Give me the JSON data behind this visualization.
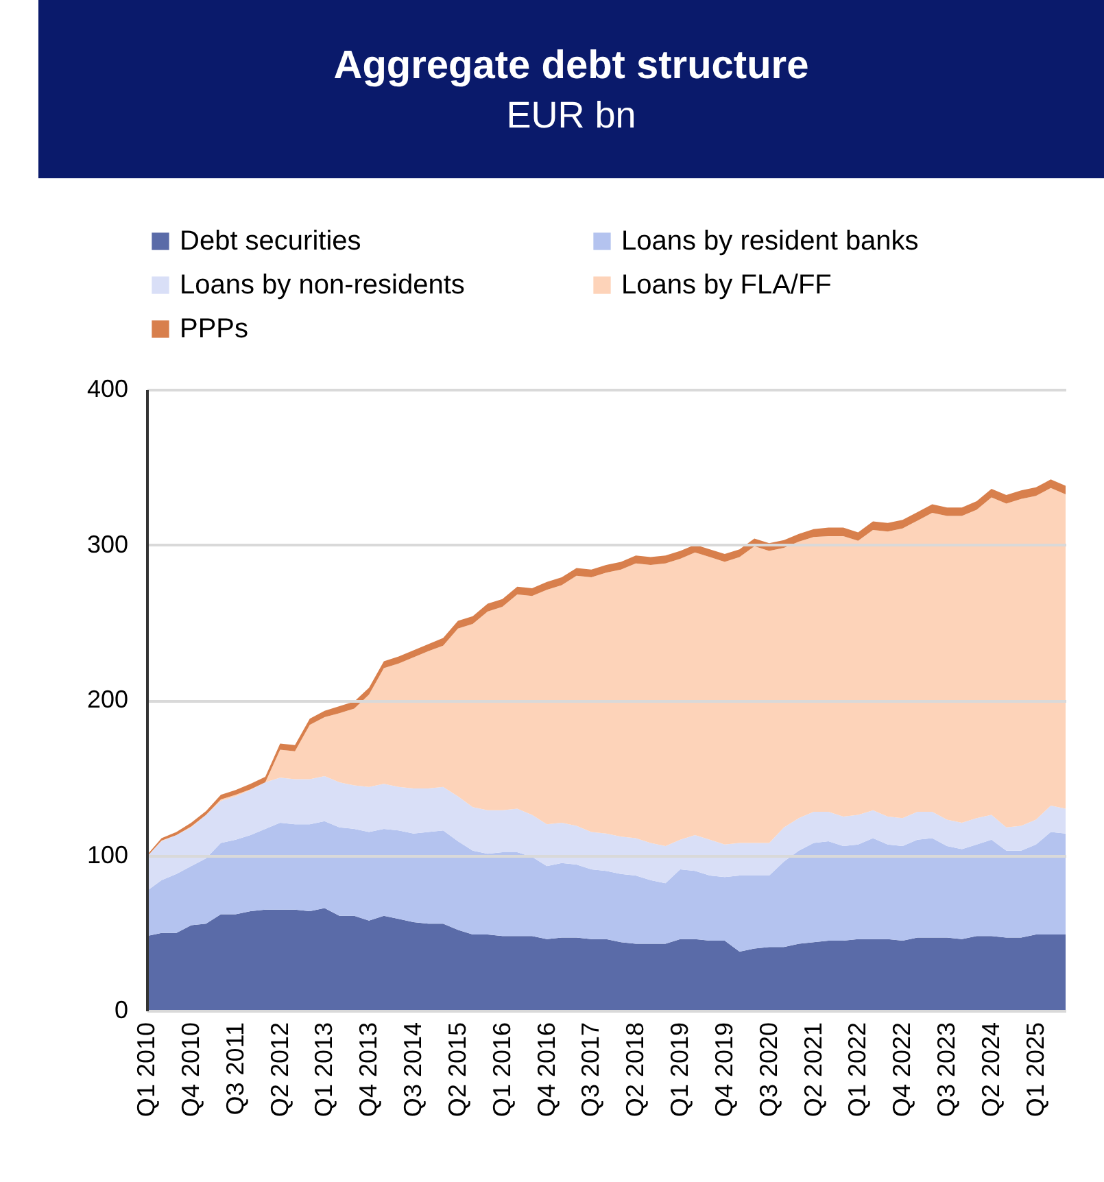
{
  "chart_data": {
    "type": "area",
    "title": "Aggregate debt structure",
    "subtitle": "EUR bn",
    "stacked": true,
    "legend": "top",
    "grid": "y",
    "categories": [
      "Q1 2010",
      null,
      null,
      "Q4 2010",
      null,
      null,
      "Q3 2011",
      null,
      null,
      "Q2 2012",
      null,
      null,
      "Q1 2013",
      null,
      null,
      "Q4 2013",
      null,
      null,
      "Q3 2014",
      null,
      null,
      "Q2 2015",
      null,
      null,
      "Q1 2016",
      null,
      null,
      "Q4 2016",
      null,
      null,
      "Q3 2017",
      null,
      null,
      "Q2 2018",
      null,
      null,
      "Q1 2019",
      null,
      null,
      "Q4 2019",
      null,
      null,
      "Q3 2020",
      null,
      null,
      "Q2 2021",
      null,
      null,
      "Q1 2022",
      null,
      null,
      "Q4 2022",
      null,
      null,
      "Q3 2023",
      null,
      null,
      "Q2 2024",
      null,
      null,
      "Q1 2025",
      null,
      null
    ],
    "ylim": [
      0,
      400
    ],
    "yticks": [
      0,
      100,
      200,
      300,
      400
    ],
    "series": [
      {
        "name": "Debt securities",
        "color": "#5a6ba8",
        "values": [
          48,
          50,
          50,
          55,
          56,
          62,
          62,
          64,
          65,
          65,
          65,
          64,
          66,
          61,
          61,
          58,
          61,
          59,
          57,
          56,
          56,
          52,
          49,
          49,
          48,
          48,
          48,
          46,
          47,
          47,
          46,
          46,
          44,
          43,
          43,
          43,
          46,
          46,
          45,
          45,
          38,
          40,
          41,
          41,
          43,
          44,
          45,
          45,
          46,
          46,
          46,
          45,
          47,
          47,
          47,
          46,
          48,
          48,
          47,
          47,
          49,
          49,
          49
        ]
      },
      {
        "name": "Loans by resident banks",
        "color": "#b4c3ef",
        "values": [
          29,
          34,
          38,
          38,
          42,
          46,
          48,
          49,
          52,
          56,
          55,
          56,
          56,
          57,
          56,
          57,
          56,
          57,
          57,
          59,
          60,
          57,
          54,
          52,
          54,
          54,
          51,
          47,
          48,
          47,
          45,
          44,
          44,
          44,
          41,
          39,
          45,
          44,
          42,
          41,
          49,
          47,
          46,
          55,
          60,
          64,
          64,
          61,
          61,
          65,
          61,
          61,
          63,
          64,
          59,
          58,
          59,
          62,
          56,
          56,
          58,
          66,
          65
        ]
      },
      {
        "name": "Loans by non-residents",
        "color": "#d9dff7",
        "values": [
          22,
          25,
          25,
          25,
          28,
          27,
          28,
          29,
          30,
          29,
          29,
          29,
          29,
          29,
          28,
          29,
          29,
          28,
          29,
          28,
          28,
          29,
          28,
          28,
          27,
          28,
          27,
          27,
          26,
          25,
          24,
          24,
          24,
          24,
          24,
          24,
          19,
          23,
          23,
          21,
          21,
          21,
          21,
          22,
          21,
          20,
          19,
          19,
          19,
          18,
          18,
          18,
          18,
          17,
          17,
          17,
          17,
          16,
          15,
          16,
          16,
          17,
          16
        ]
      },
      {
        "name": "Loans by FLA/FF",
        "color": "#fdd3b9",
        "values": [
          0,
          0.5,
          0,
          0.5,
          0,
          1,
          1,
          0.5,
          0,
          18,
          18,
          35,
          38,
          44.5,
          49.5,
          59.5,
          74.5,
          79.5,
          84.5,
          88.5,
          91,
          108,
          118,
          128,
          131,
          138,
          141,
          151,
          153,
          161,
          164,
          168,
          172,
          177,
          179,
          182,
          181,
          182,
          182,
          182,
          184,
          191,
          188,
          180,
          178,
          177,
          177.5,
          180.5,
          176.5,
          180.5,
          183.5,
          186.5,
          187.5,
          192.5,
          195.5,
          197.5,
          198.5,
          204.5,
          208.5,
          210.5,
          208.5,
          204.5,
          202.5
        ]
      },
      {
        "name": "PPPs",
        "color": "#d87f4c",
        "values": [
          1,
          1.5,
          2,
          2.5,
          2.5,
          3,
          3,
          3.5,
          3.5,
          4,
          4,
          4,
          4,
          4.5,
          4.5,
          4.5,
          4.5,
          4.5,
          4.5,
          4.5,
          5,
          5,
          5,
          5,
          5,
          5,
          5,
          5,
          5,
          5,
          5,
          5,
          5,
          5,
          5,
          5,
          5,
          5,
          5,
          5,
          5,
          5,
          5,
          5,
          5,
          5,
          5.5,
          5.5,
          5.5,
          5.5,
          5.5,
          5.5,
          5.5,
          5.5,
          5.5,
          5.5,
          5.5,
          5.5,
          5.5,
          5.5,
          5.5,
          5.5,
          5.5
        ]
      }
    ]
  }
}
